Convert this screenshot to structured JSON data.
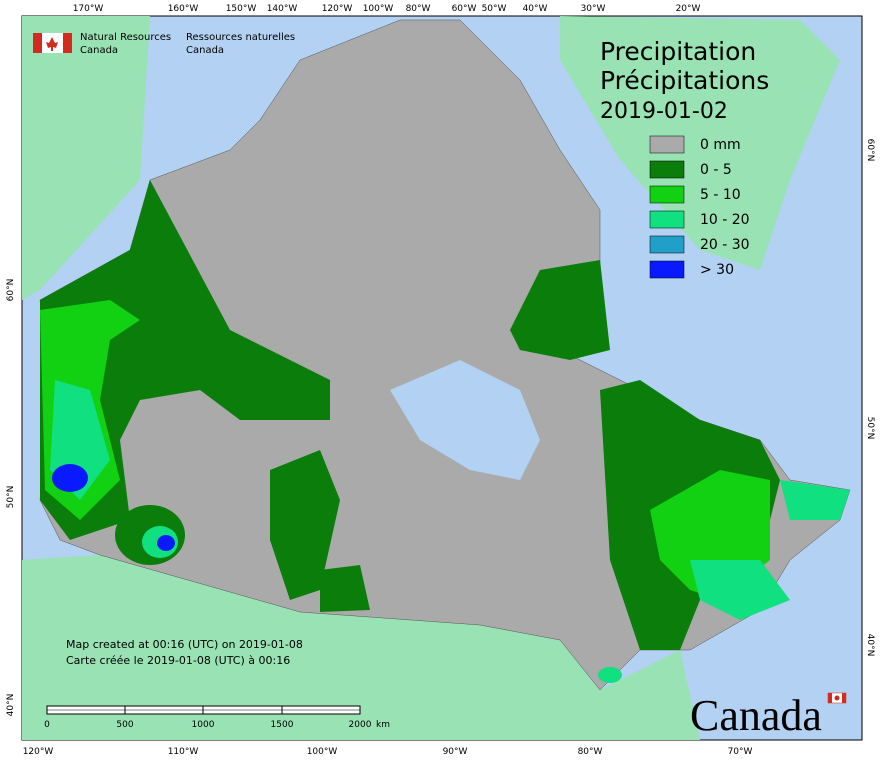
{
  "header": {
    "org_en_1": "Natural Resources",
    "org_en_2": "Canada",
    "org_fr_1": "Ressources naturelles",
    "org_fr_2": "Canada"
  },
  "title": {
    "en": "Precipitation",
    "fr": "Précipitations",
    "date": "2019-01-02"
  },
  "legend": [
    {
      "label": "0 mm",
      "color": "#aaaaaa"
    },
    {
      "label": "0 - 5",
      "color": "#0a7d0a"
    },
    {
      "label": "5 - 10",
      "color": "#12d012"
    },
    {
      "label": "10 - 20",
      "color": "#10e080"
    },
    {
      "label": "20 - 30",
      "color": "#20a0c8"
    },
    {
      "label": "> 30",
      "color": "#0a1aff"
    }
  ],
  "top_lon_labels": [
    "170°W",
    "160°W",
    "150°W",
    "140°W",
    "120°W",
    "100°W",
    "80°W",
    "60°W",
    "50°W",
    "40°W",
    "30°W",
    "20°W"
  ],
  "bottom_lon_labels": [
    "120°W",
    "110°W",
    "100°W",
    "90°W",
    "80°W",
    "70°W"
  ],
  "left_lat_labels": [
    "60°N",
    "50°N",
    "40°N"
  ],
  "right_lat_labels": [
    "60°N",
    "50°N",
    "40°N"
  ],
  "note": [
    "Map created at 00:16 (UTC) on 2019-01-08",
    "Carte créée le 2019-01-08 (UTC) à 00:16"
  ],
  "scale": {
    "ticks": [
      "0",
      "500",
      "1000",
      "1500",
      "2000"
    ],
    "unit": "km"
  },
  "wordmark": "Canada"
}
